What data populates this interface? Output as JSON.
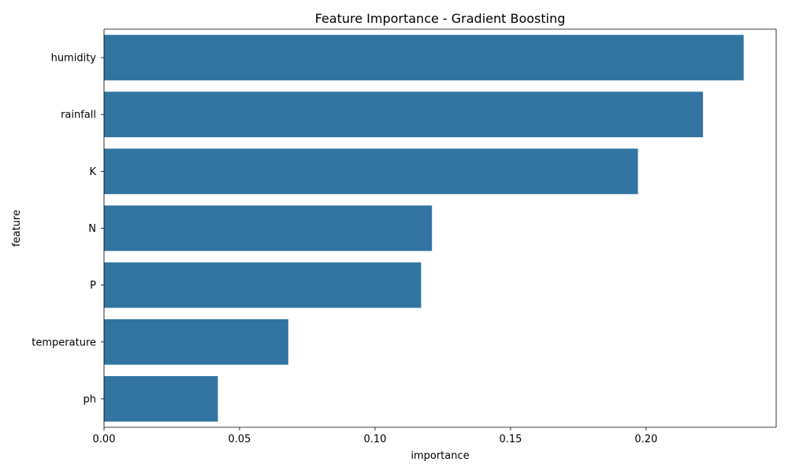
{
  "chart_data": {
    "type": "bar",
    "orientation": "horizontal",
    "title": "Feature Importance - Gradient Boosting",
    "xlabel": "importance",
    "ylabel": "feature",
    "categories": [
      "humidity",
      "rainfall",
      "K",
      "N",
      "P",
      "temperature",
      "ph"
    ],
    "values": [
      0.236,
      0.221,
      0.197,
      0.121,
      0.117,
      0.068,
      0.042
    ],
    "xlim": [
      0,
      0.248
    ],
    "xticks": [
      0.0,
      0.05,
      0.1,
      0.15,
      0.2
    ],
    "xtick_labels": [
      "0.00",
      "0.05",
      "0.10",
      "0.15",
      "0.20"
    ],
    "grid": false,
    "bar_color": "#3274a1"
  }
}
